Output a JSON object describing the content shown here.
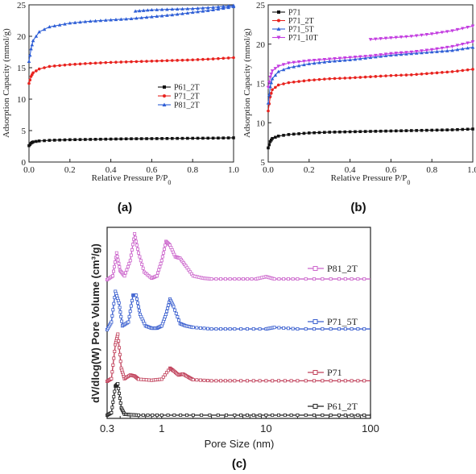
{
  "chart_data": [
    {
      "id": "a",
      "type": "line",
      "panel_label": "(a)",
      "xlabel": "Relative Pressure P/P",
      "xlabel_sub": "0",
      "ylabel": "Adsorption Capacity (mmol/g)",
      "xlim": [
        0,
        1.0
      ],
      "ylim": [
        0,
        25
      ],
      "xticks": [
        "0.0",
        "0.2",
        "0.4",
        "0.6",
        "0.8",
        "1.0"
      ],
      "yticks": [
        "0",
        "5",
        "10",
        "15",
        "20",
        "25"
      ],
      "legend_position": "center-right",
      "series": [
        {
          "name": "P61_2T",
          "color": "#111111",
          "marker": "square",
          "x": [
            0.0,
            0.01,
            0.02,
            0.05,
            0.1,
            0.2,
            0.3,
            0.4,
            0.5,
            0.6,
            0.7,
            0.8,
            0.9,
            1.0
          ],
          "y": [
            2.6,
            3.0,
            3.2,
            3.35,
            3.45,
            3.55,
            3.6,
            3.65,
            3.7,
            3.72,
            3.75,
            3.78,
            3.8,
            3.85
          ]
        },
        {
          "name": "P71_2T",
          "color": "#e8231f",
          "marker": "circle",
          "x": [
            0.0,
            0.01,
            0.02,
            0.05,
            0.1,
            0.2,
            0.3,
            0.4,
            0.5,
            0.6,
            0.7,
            0.8,
            0.9,
            1.0
          ],
          "y": [
            12.5,
            13.6,
            14.2,
            14.8,
            15.2,
            15.5,
            15.7,
            15.85,
            15.95,
            16.05,
            16.15,
            16.25,
            16.4,
            16.6
          ]
        },
        {
          "name": "P81_2T",
          "color": "#2f5fd6",
          "marker": "triangle",
          "x": [
            0.0,
            0.01,
            0.02,
            0.05,
            0.1,
            0.2,
            0.3,
            0.4,
            0.5,
            0.6,
            0.7,
            0.8,
            0.9,
            1.0
          ],
          "y": [
            16.0,
            18.0,
            19.3,
            20.7,
            21.5,
            22.1,
            22.4,
            22.6,
            22.8,
            23.1,
            23.4,
            23.8,
            24.2,
            24.7
          ]
        },
        {
          "name": "",
          "color": "#2f5fd6",
          "marker": "triangle",
          "x": [
            0.52,
            0.6,
            0.7,
            0.8,
            0.9,
            1.0
          ],
          "y": [
            24.0,
            24.2,
            24.3,
            24.4,
            24.6,
            24.9
          ]
        }
      ]
    },
    {
      "id": "b",
      "type": "line",
      "panel_label": "(b)",
      "xlabel": "Relative Pressure P/P",
      "xlabel_sub": "0",
      "ylabel": "Adsorption Capacity (mmol/g)",
      "xlim": [
        0,
        1.0
      ],
      "ylim": [
        5,
        25
      ],
      "xticks": [
        "0.0",
        "0.2",
        "0.4",
        "0.6",
        "0.8",
        "1.0"
      ],
      "yticks": [
        "5",
        "10",
        "15",
        "20",
        "25"
      ],
      "legend_position": "top-left",
      "series": [
        {
          "name": "P71",
          "color": "#111111",
          "marker": "square",
          "x": [
            0.0,
            0.01,
            0.02,
            0.05,
            0.1,
            0.2,
            0.3,
            0.4,
            0.5,
            0.6,
            0.7,
            0.8,
            0.9,
            1.0
          ],
          "y": [
            6.8,
            7.6,
            8.0,
            8.3,
            8.5,
            8.7,
            8.8,
            8.85,
            8.9,
            8.95,
            9.0,
            9.05,
            9.1,
            9.2
          ]
        },
        {
          "name": "P71_2T",
          "color": "#e8231f",
          "marker": "circle",
          "x": [
            0.0,
            0.01,
            0.02,
            0.05,
            0.1,
            0.2,
            0.3,
            0.4,
            0.5,
            0.6,
            0.7,
            0.8,
            0.9,
            1.0
          ],
          "y": [
            11.5,
            13.3,
            14.2,
            14.8,
            15.1,
            15.4,
            15.6,
            15.7,
            15.85,
            16.0,
            16.1,
            16.3,
            16.5,
            16.8
          ]
        },
        {
          "name": "P71_5T",
          "color": "#2f5fd6",
          "marker": "triangle",
          "x": [
            0.0,
            0.01,
            0.02,
            0.05,
            0.1,
            0.2,
            0.3,
            0.4,
            0.5,
            0.6,
            0.7,
            0.8,
            0.9,
            1.0
          ],
          "y": [
            12.5,
            14.6,
            15.6,
            16.5,
            17.0,
            17.5,
            17.8,
            18.0,
            18.3,
            18.6,
            18.8,
            19.0,
            19.2,
            19.6
          ]
        },
        {
          "name": "P71_10T",
          "color": "#c33de0",
          "marker": "triangle-down",
          "x": [
            0.0,
            0.01,
            0.02,
            0.05,
            0.1,
            0.2,
            0.3,
            0.4,
            0.5,
            0.6,
            0.7,
            0.8,
            0.9,
            1.0
          ],
          "y": [
            14.5,
            15.8,
            16.6,
            17.2,
            17.6,
            17.9,
            18.1,
            18.3,
            18.5,
            18.8,
            19.0,
            19.3,
            19.7,
            20.3
          ]
        },
        {
          "name": "",
          "color": "#c33de0",
          "marker": "triangle-down",
          "x": [
            0.5,
            0.6,
            0.7,
            0.8,
            0.9,
            1.0
          ],
          "y": [
            20.6,
            20.8,
            21.0,
            21.3,
            21.7,
            22.3
          ]
        }
      ]
    },
    {
      "id": "c",
      "type": "line",
      "panel_label": "(c)",
      "xlabel": "Pore Size (nm)",
      "ylabel": "dV/dlog(W) Pore Volume (cm³/g)",
      "xscale": "log",
      "xlim": [
        0.3,
        100
      ],
      "xticks": [
        "0.3",
        "1",
        "10",
        "100"
      ],
      "xtick_values": [
        0.3,
        1,
        10,
        100
      ],
      "legend_position": "right, beside each curve",
      "series": [
        {
          "name": "P81_2T",
          "color": "#cc66cc",
          "offset": 3.0,
          "x": [
            0.3,
            0.34,
            0.37,
            0.4,
            0.44,
            0.5,
            0.55,
            0.6,
            0.68,
            0.8,
            0.9,
            1.0,
            1.1,
            1.2,
            1.35,
            1.5,
            1.7,
            2.0,
            2.5,
            3,
            5,
            8,
            10,
            12,
            20,
            50,
            100
          ],
          "y": [
            0.0,
            0.05,
            0.35,
            0.12,
            0.05,
            0.25,
            0.6,
            0.35,
            0.1,
            0.02,
            0.05,
            0.25,
            0.5,
            0.45,
            0.3,
            0.28,
            0.18,
            0.05,
            0.02,
            0.01,
            0.01,
            0.01,
            0.04,
            0.01,
            0.01,
            0.01,
            0.01
          ]
        },
        {
          "name": "P71_5T",
          "color": "#3a5fcf",
          "offset": 2.0,
          "x": [
            0.3,
            0.33,
            0.36,
            0.39,
            0.42,
            0.48,
            0.53,
            0.57,
            0.62,
            0.7,
            0.8,
            0.9,
            1.0,
            1.1,
            1.2,
            1.3,
            1.5,
            1.7,
            2.0,
            3,
            5,
            10,
            12,
            20,
            50,
            100
          ],
          "y": [
            0.0,
            0.1,
            0.5,
            0.35,
            0.05,
            0.1,
            0.45,
            0.45,
            0.2,
            0.05,
            0.02,
            0.02,
            0.05,
            0.2,
            0.4,
            0.3,
            0.08,
            0.05,
            0.03,
            0.01,
            0.01,
            0.01,
            0.03,
            0.01,
            0.01,
            0.01
          ]
        },
        {
          "name": "P71",
          "color": "#c0405a",
          "offset": 1.0,
          "x": [
            0.3,
            0.33,
            0.36,
            0.38,
            0.41,
            0.44,
            0.5,
            0.55,
            0.6,
            0.8,
            1.0,
            1.2,
            1.3,
            1.45,
            1.6,
            1.8,
            2.0,
            3,
            5,
            10,
            20,
            50,
            100
          ],
          "y": [
            0.0,
            0.05,
            0.7,
            0.9,
            0.25,
            0.05,
            0.12,
            0.1,
            0.04,
            0.02,
            0.04,
            0.25,
            0.2,
            0.12,
            0.14,
            0.08,
            0.03,
            0.01,
            0.01,
            0.01,
            0.01,
            0.01,
            0.01
          ]
        },
        {
          "name": "P61_2T",
          "color": "#222222",
          "offset": 0.0,
          "x": [
            0.3,
            0.33,
            0.36,
            0.38,
            0.41,
            0.44,
            0.5,
            0.6,
            1,
            2,
            5,
            10,
            20,
            50,
            100
          ],
          "y": [
            0.0,
            0.05,
            0.6,
            0.65,
            0.15,
            0.02,
            0.01,
            0.0,
            0.0,
            0.0,
            0.0,
            0.0,
            0.0,
            0.0,
            0.0
          ]
        }
      ]
    }
  ]
}
